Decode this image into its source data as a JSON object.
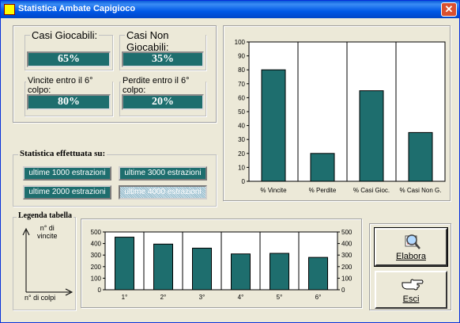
{
  "window": {
    "title": "Statistica Ambate Capigioco",
    "close_glyph": "✕"
  },
  "summary": {
    "casi_giocabili": {
      "label": "Casi Giocabili:",
      "value": "65%"
    },
    "casi_non_giocabili": {
      "label": "Casi Non Giocabili:",
      "value": "35%"
    },
    "vincite": {
      "label": "Vincite entro il 6° colpo:",
      "value": "80%"
    },
    "perdite": {
      "label": "Perdite entro il 6° colpo:",
      "value": "20%"
    }
  },
  "stats_on": {
    "label": "Statistica effettuata su:",
    "buttons": [
      "ultime 1000 estrazioni",
      "ultime 3000 estrazioni",
      "ultime 2000 estrazioni",
      "ultime 4000 estrazioni"
    ]
  },
  "legend": {
    "title": "Legenda tabella",
    "y_label": "n° di\nvincite",
    "x_label": "n° di colpi"
  },
  "buttons": {
    "elabora": "Elabora",
    "esci": "Esci"
  },
  "icons": {
    "elabora": "magnifier-chart-icon",
    "esci": "pointing-hand-icon"
  },
  "colors": {
    "bar": "#1e6e6e",
    "titlebar": "#0058e6"
  },
  "chart_data": [
    {
      "type": "bar",
      "categories": [
        "% Vincite",
        "% Perdite",
        "% Casi Gioc.",
        "% Casi Non G."
      ],
      "values": [
        80,
        20,
        65,
        35
      ],
      "ylim": [
        0,
        100
      ],
      "yticks": [
        0,
        10,
        20,
        30,
        40,
        50,
        60,
        70,
        80,
        90,
        100
      ],
      "grid": "vertical"
    },
    {
      "type": "bar",
      "categories": [
        "1°",
        "2°",
        "3°",
        "4°",
        "5°",
        "6°"
      ],
      "values": [
        455,
        395,
        360,
        310,
        315,
        280
      ],
      "ylim": [
        0,
        500
      ],
      "yticks": [
        0,
        100,
        200,
        300,
        400,
        500
      ],
      "grid": "vertical"
    }
  ]
}
